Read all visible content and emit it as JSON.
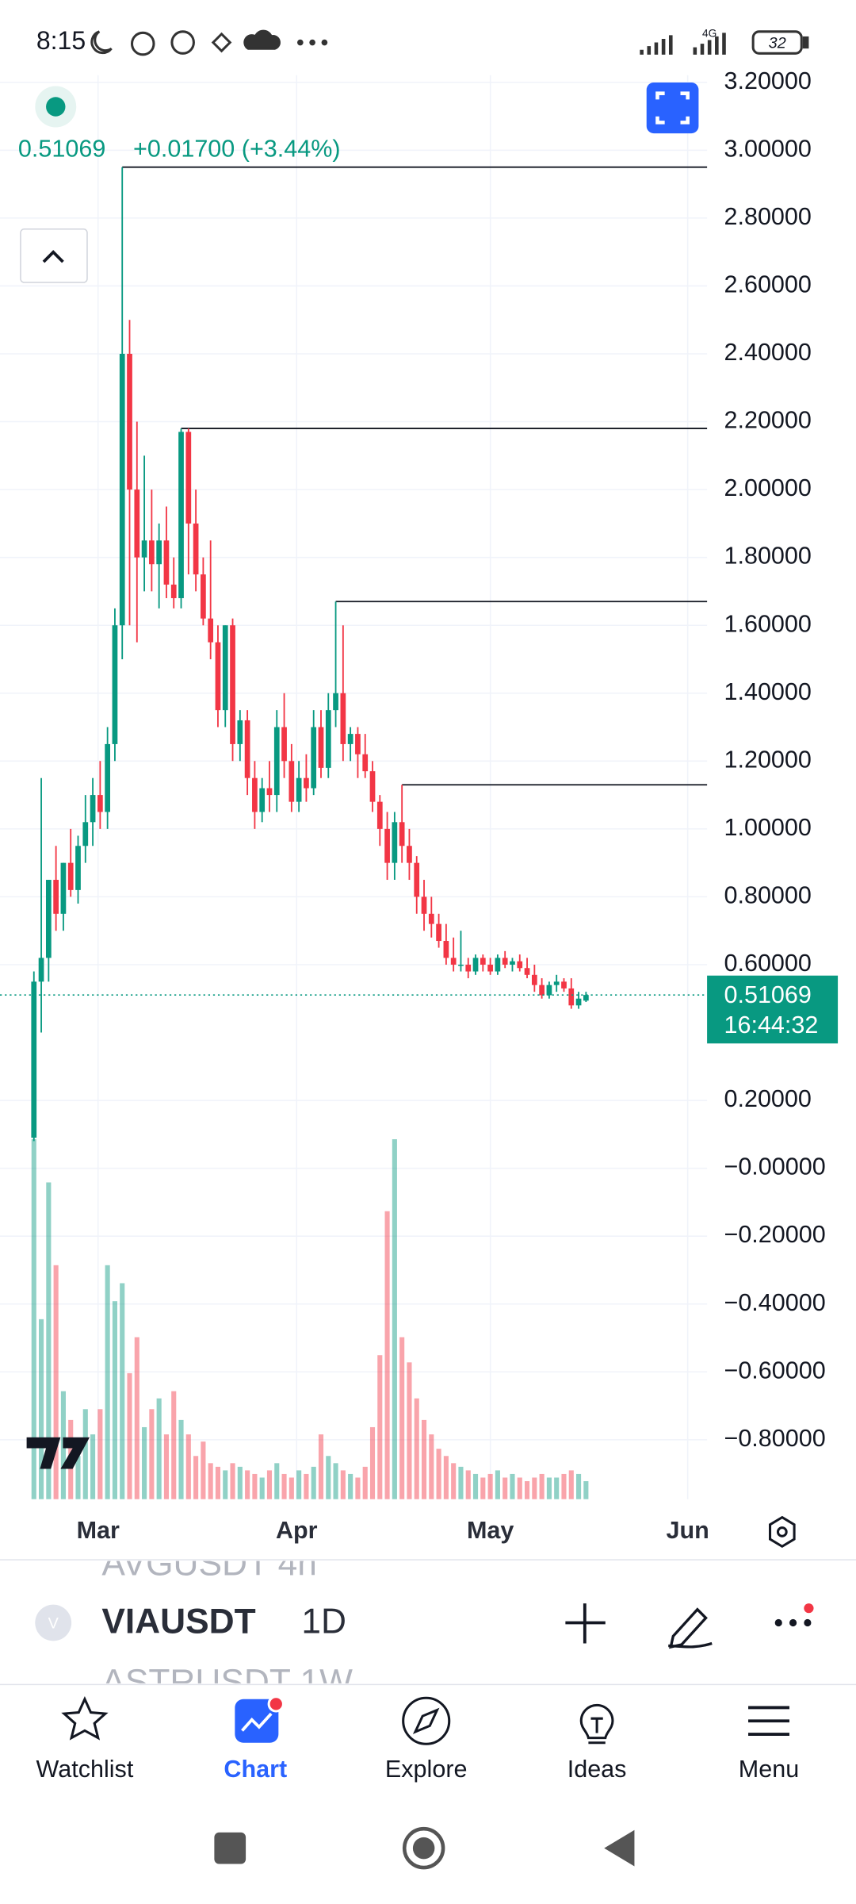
{
  "status_bar": {
    "time": "8:15",
    "network": "4G",
    "battery": "32"
  },
  "chart_data": {
    "type": "candlestick",
    "header": {
      "price": "0.51069",
      "change": "+0.01700 (+3.44%)"
    },
    "price_tag": {
      "value": 0.51069,
      "label": "0.51069",
      "countdown": "16:44:32"
    },
    "ylim": [
      -0.975,
      3.221
    ],
    "yticks": [
      {
        "value": 3.2,
        "label": "3.20000"
      },
      {
        "value": 3.0,
        "label": "3.00000"
      },
      {
        "value": 2.8,
        "label": "2.80000"
      },
      {
        "value": 2.6,
        "label": "2.60000"
      },
      {
        "value": 2.4,
        "label": "2.40000"
      },
      {
        "value": 2.2,
        "label": "2.20000"
      },
      {
        "value": 2.0,
        "label": "2.00000"
      },
      {
        "value": 1.8,
        "label": "1.80000"
      },
      {
        "value": 1.6,
        "label": "1.60000"
      },
      {
        "value": 1.4,
        "label": "1.40000"
      },
      {
        "value": 1.2,
        "label": "1.20000"
      },
      {
        "value": 1.0,
        "label": "1.00000"
      },
      {
        "value": 0.8,
        "label": "0.80000"
      },
      {
        "value": 0.6,
        "label": "0.60000"
      },
      {
        "value": 0.2,
        "label": "0.20000"
      },
      {
        "value": 0,
        "label": "−0.00000"
      },
      {
        "value": -0.2,
        "label": "−0.20000"
      },
      {
        "value": -0.4,
        "label": "−0.40000"
      },
      {
        "value": -0.6,
        "label": "−0.60000"
      },
      {
        "value": -0.8,
        "label": "−0.80000"
      }
    ],
    "categories": [
      "Mar",
      "Apr",
      "May",
      "Jun"
    ],
    "levels": [
      2.95,
      2.18,
      1.67,
      1.13
    ],
    "colors": {
      "up": "#089981",
      "down": "#f23645"
    },
    "candles": [
      [
        0.09,
        0.58,
        0.08,
        0.55
      ],
      [
        0.55,
        1.15,
        0.4,
        0.62
      ],
      [
        0.62,
        0.85,
        0.55,
        0.85
      ],
      [
        0.85,
        0.95,
        0.7,
        0.75
      ],
      [
        0.75,
        0.9,
        0.7,
        0.9
      ],
      [
        0.9,
        1.0,
        0.8,
        0.82
      ],
      [
        0.82,
        0.98,
        0.78,
        0.95
      ],
      [
        0.95,
        1.1,
        0.9,
        1.02
      ],
      [
        1.02,
        1.15,
        0.95,
        1.1
      ],
      [
        1.1,
        1.2,
        1.0,
        1.05
      ],
      [
        1.05,
        1.3,
        1.0,
        1.25
      ],
      [
        1.25,
        1.65,
        1.2,
        1.6
      ],
      [
        1.6,
        2.95,
        1.5,
        2.4
      ],
      [
        2.4,
        2.5,
        1.6,
        2.0
      ],
      [
        2.0,
        2.2,
        1.55,
        1.8
      ],
      [
        1.8,
        2.1,
        1.7,
        1.85
      ],
      [
        1.85,
        2.0,
        1.7,
        1.78
      ],
      [
        1.78,
        1.9,
        1.65,
        1.85
      ],
      [
        1.85,
        1.95,
        1.68,
        1.72
      ],
      [
        1.72,
        1.8,
        1.65,
        1.68
      ],
      [
        1.68,
        2.18,
        1.65,
        2.17
      ],
      [
        2.17,
        2.18,
        1.75,
        1.9
      ],
      [
        1.9,
        2.0,
        1.7,
        1.75
      ],
      [
        1.75,
        1.8,
        1.6,
        1.62
      ],
      [
        1.62,
        1.85,
        1.5,
        1.55
      ],
      [
        1.55,
        1.6,
        1.3,
        1.35
      ],
      [
        1.35,
        1.6,
        1.3,
        1.6
      ],
      [
        1.6,
        1.62,
        1.2,
        1.25
      ],
      [
        1.25,
        1.35,
        1.2,
        1.32
      ],
      [
        1.32,
        1.35,
        1.1,
        1.15
      ],
      [
        1.15,
        1.2,
        1.0,
        1.05
      ],
      [
        1.05,
        1.15,
        1.02,
        1.12
      ],
      [
        1.12,
        1.2,
        1.05,
        1.1
      ],
      [
        1.1,
        1.35,
        1.05,
        1.3
      ],
      [
        1.3,
        1.4,
        1.15,
        1.2
      ],
      [
        1.2,
        1.25,
        1.05,
        1.08
      ],
      [
        1.08,
        1.2,
        1.05,
        1.15
      ],
      [
        1.15,
        1.22,
        1.08,
        1.12
      ],
      [
        1.12,
        1.35,
        1.1,
        1.3
      ],
      [
        1.3,
        1.35,
        1.15,
        1.18
      ],
      [
        1.18,
        1.4,
        1.15,
        1.35
      ],
      [
        1.35,
        1.67,
        1.3,
        1.4
      ],
      [
        1.4,
        1.6,
        1.2,
        1.25
      ],
      [
        1.25,
        1.3,
        1.2,
        1.28
      ],
      [
        1.28,
        1.3,
        1.15,
        1.22
      ],
      [
        1.22,
        1.28,
        1.15,
        1.17
      ],
      [
        1.17,
        1.2,
        1.05,
        1.08
      ],
      [
        1.08,
        1.1,
        0.95,
        1.0
      ],
      [
        1.0,
        1.05,
        0.85,
        0.9
      ],
      [
        0.9,
        1.05,
        0.85,
        1.02
      ],
      [
        1.02,
        1.13,
        0.9,
        0.95
      ],
      [
        0.95,
        1.0,
        0.85,
        0.9
      ],
      [
        0.9,
        0.92,
        0.75,
        0.8
      ],
      [
        0.8,
        0.85,
        0.7,
        0.75
      ],
      [
        0.75,
        0.8,
        0.68,
        0.72
      ],
      [
        0.72,
        0.75,
        0.65,
        0.67
      ],
      [
        0.67,
        0.72,
        0.6,
        0.62
      ],
      [
        0.62,
        0.68,
        0.58,
        0.6
      ],
      [
        0.6,
        0.7,
        0.58,
        0.6
      ],
      [
        0.6,
        0.62,
        0.56,
        0.58
      ],
      [
        0.58,
        0.63,
        0.57,
        0.62
      ],
      [
        0.62,
        0.63,
        0.58,
        0.6
      ],
      [
        0.6,
        0.62,
        0.57,
        0.58
      ],
      [
        0.58,
        0.63,
        0.57,
        0.62
      ],
      [
        0.62,
        0.64,
        0.59,
        0.6
      ],
      [
        0.6,
        0.62,
        0.58,
        0.61
      ],
      [
        0.61,
        0.63,
        0.58,
        0.59
      ],
      [
        0.59,
        0.62,
        0.56,
        0.57
      ],
      [
        0.57,
        0.6,
        0.52,
        0.54
      ],
      [
        0.54,
        0.56,
        0.5,
        0.51
      ],
      [
        0.51,
        0.55,
        0.5,
        0.54
      ],
      [
        0.54,
        0.57,
        0.52,
        0.55
      ],
      [
        0.55,
        0.56,
        0.52,
        0.53
      ],
      [
        0.53,
        0.56,
        0.47,
        0.48
      ],
      [
        0.48,
        0.52,
        0.47,
        0.5
      ],
      [
        0.494,
        0.52,
        0.49,
        0.51069
      ]
    ],
    "volume": [
      100,
      50,
      88,
      65,
      30,
      22,
      12,
      25,
      18,
      25,
      65,
      55,
      60,
      35,
      45,
      20,
      25,
      28,
      18,
      30,
      22,
      18,
      12,
      16,
      10,
      9,
      8,
      10,
      9,
      8,
      7,
      6,
      8,
      10,
      7,
      6,
      8,
      7,
      9,
      18,
      12,
      10,
      8,
      7,
      6,
      9,
      20,
      40,
      80,
      100,
      45,
      38,
      28,
      22,
      18,
      14,
      12,
      10,
      9,
      8,
      7,
      6,
      7,
      8,
      6,
      7,
      6,
      5,
      6,
      7,
      6,
      6,
      7,
      8,
      7,
      5
    ]
  },
  "symbol_bar": {
    "prev": "AVGUSDT  4h",
    "symbol": "VIAUSDT",
    "interval": "1D",
    "next": "ASTRUSDT  1W",
    "badge": "V"
  },
  "nav": [
    "Watchlist",
    "Chart",
    "Explore",
    "Ideas",
    "Menu"
  ]
}
